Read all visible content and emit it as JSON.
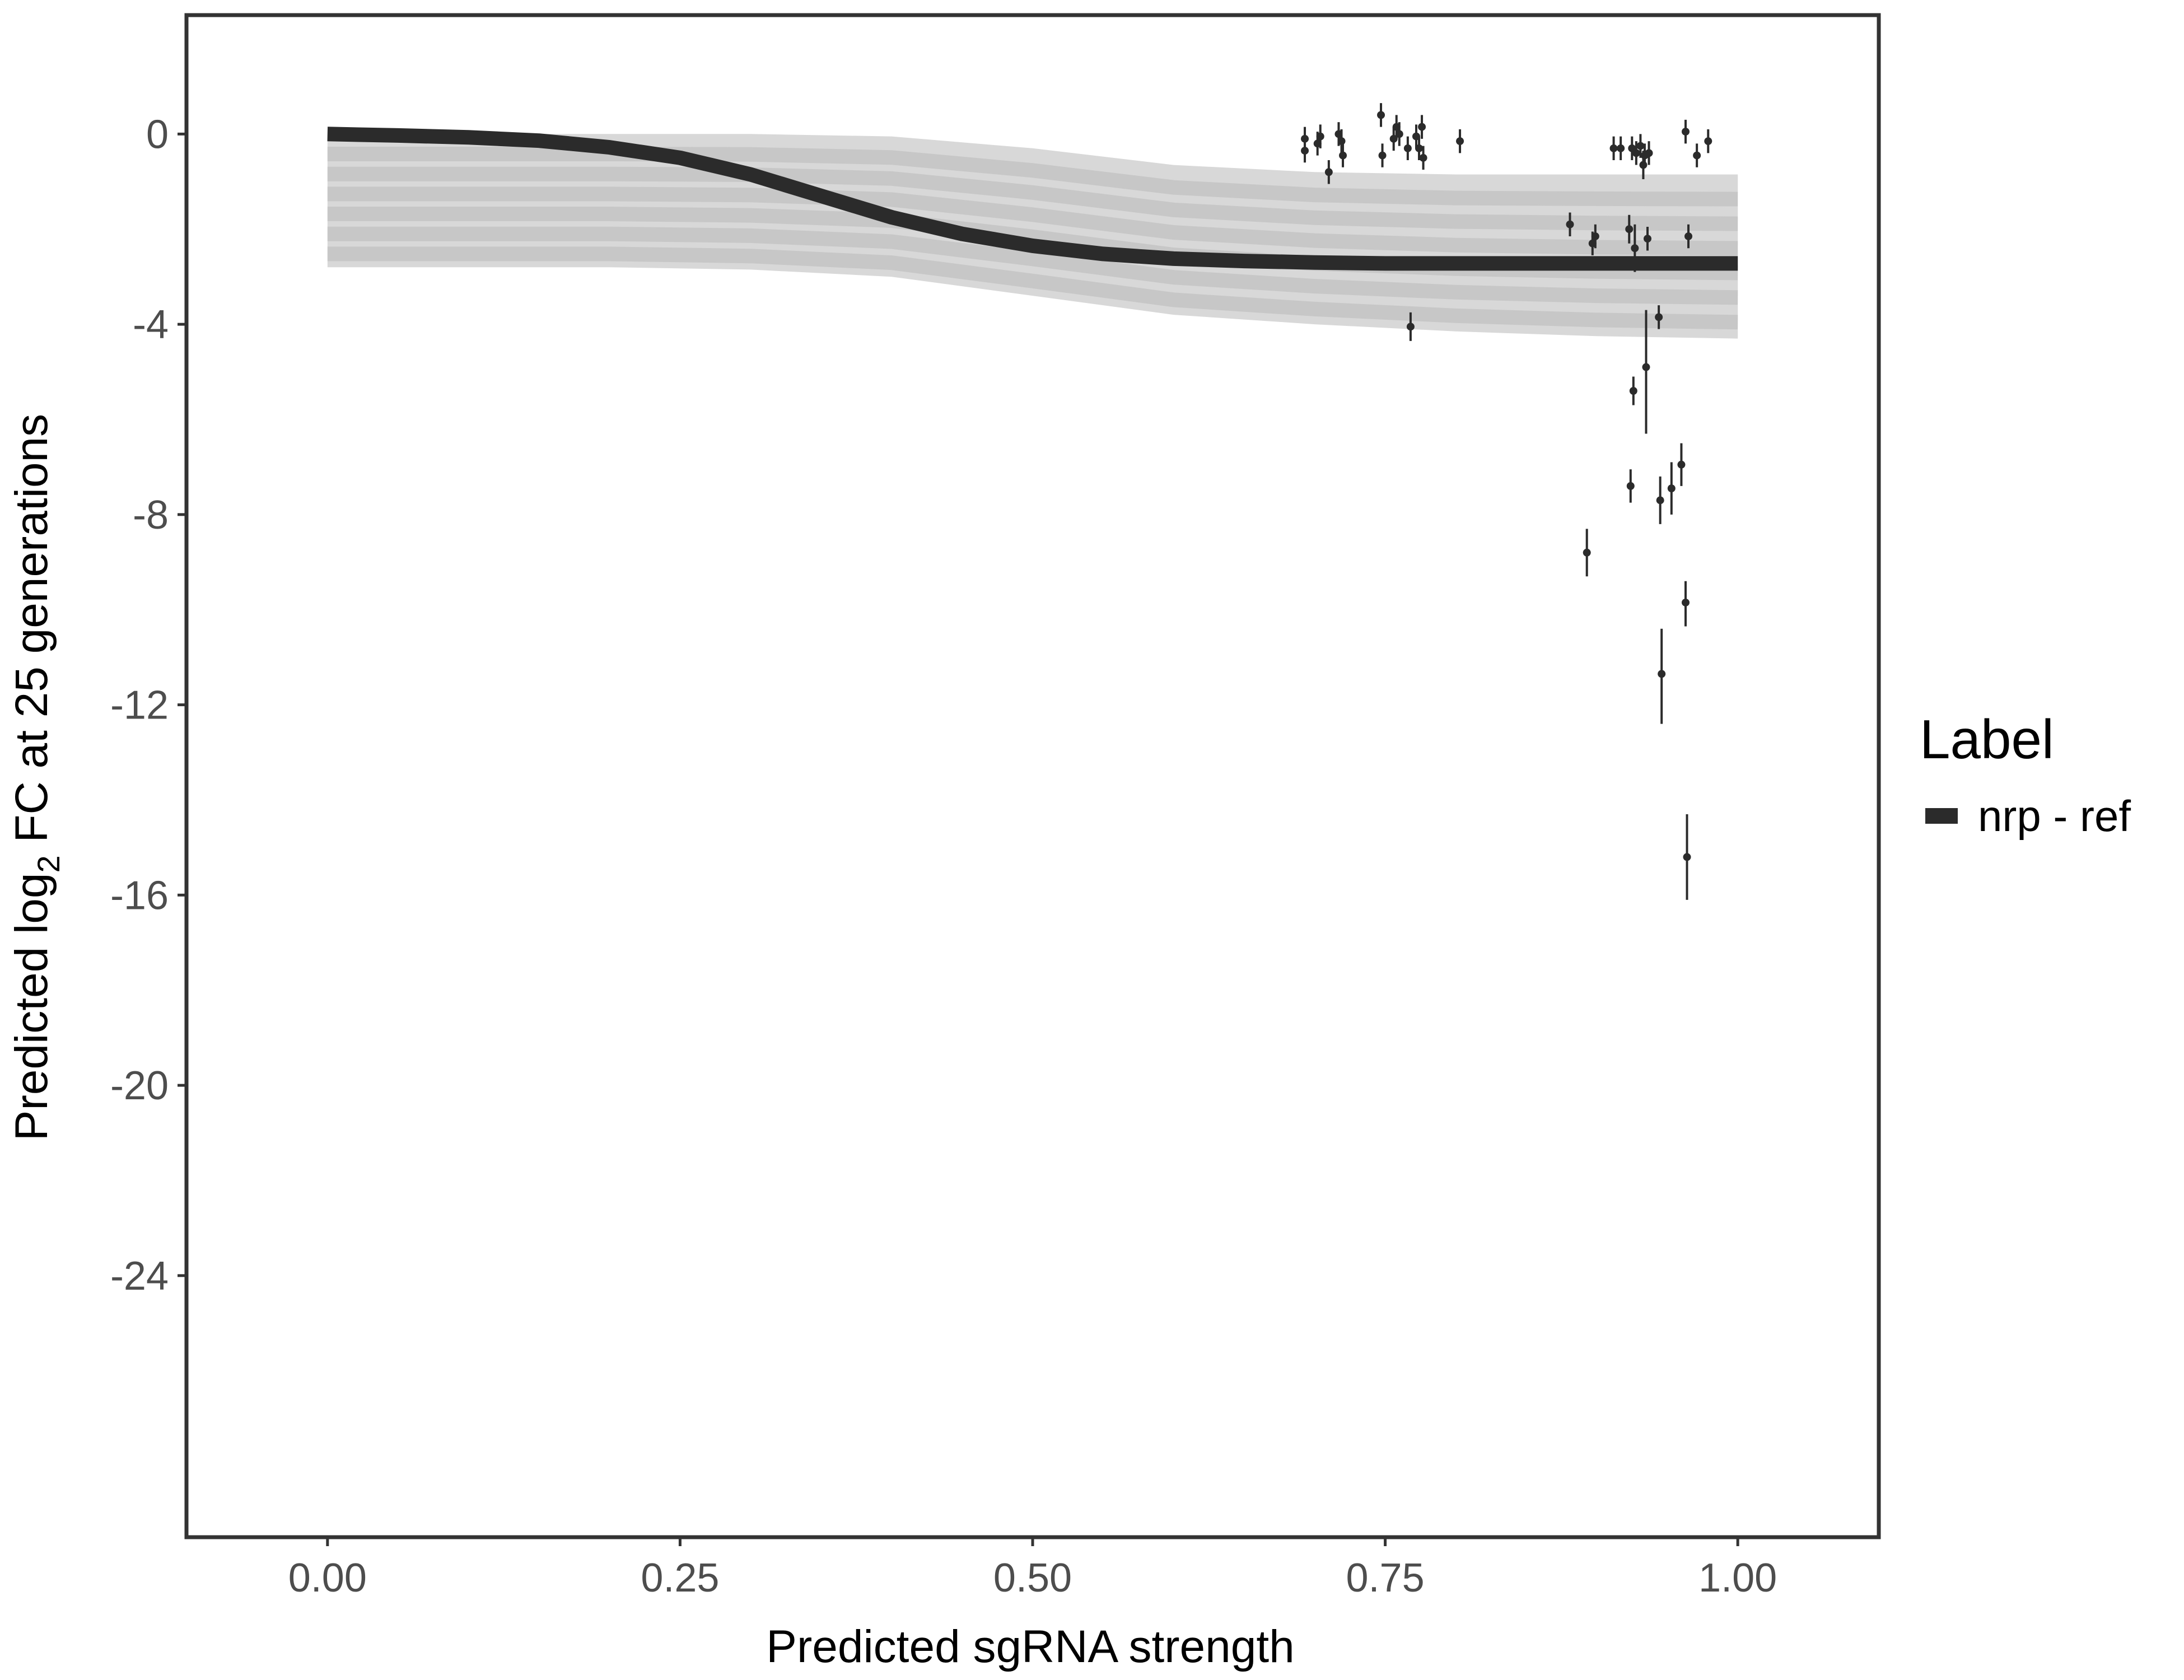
{
  "chart_data": {
    "type": "line",
    "title": "",
    "xlabel": "Predicted sgRNA strength",
    "ylabel_prefix": "Predicted  log",
    "ylabel_subscript": "2",
    "ylabel_suffix": " FC at 25 generations",
    "xlim": [
      -0.1,
      1.1
    ],
    "ylim": [
      -29.5,
      2.5
    ],
    "x_ticks": [
      0,
      0.25,
      0.5,
      0.75,
      1
    ],
    "x_tick_labels": [
      "0.00",
      "0.25",
      "0.50",
      "0.75",
      "1.00"
    ],
    "y_ticks": [
      0,
      -4,
      -8,
      -12,
      -16,
      -20,
      -24
    ],
    "y_tick_labels": [
      "0",
      "-4",
      "-8",
      "-12",
      "-16",
      "-20",
      "-24"
    ],
    "grid": false,
    "legend": {
      "title": "Label",
      "position": "right",
      "entries": [
        {
          "label": "nrp - ref",
          "color": "#2b2b2b"
        }
      ]
    },
    "series": [
      {
        "name": "nrp - ref",
        "kind": "fit-curve",
        "color": "#2b2b2b",
        "x": [
          0,
          0.05,
          0.1,
          0.15,
          0.2,
          0.25,
          0.3,
          0.35,
          0.4,
          0.45,
          0.5,
          0.55,
          0.6,
          0.65,
          0.7,
          0.75,
          0.8,
          0.85,
          0.9,
          0.95,
          1.0
        ],
        "y": [
          0,
          -0.03,
          -0.07,
          -0.14,
          -0.28,
          -0.5,
          -0.85,
          -1.3,
          -1.75,
          -2.1,
          -2.35,
          -2.52,
          -2.62,
          -2.67,
          -2.7,
          -2.72,
          -2.72,
          -2.72,
          -2.72,
          -2.72,
          -2.72
        ]
      },
      {
        "name": "",
        "kind": "posterior-draws",
        "color": "#a8a8a8",
        "band_x": [
          0,
          0.1,
          0.2,
          0.3,
          0.4,
          0.5,
          0.6,
          0.7,
          0.8,
          0.9,
          1.0
        ],
        "band_upper": [
          0,
          0,
          0,
          0,
          -0.05,
          -0.3,
          -0.65,
          -0.8,
          -0.85,
          -0.85,
          -0.85
        ],
        "band_lower": [
          -2.8,
          -2.8,
          -2.8,
          -2.85,
          -3.0,
          -3.4,
          -3.8,
          -4.0,
          -4.15,
          -4.25,
          -4.3
        ]
      },
      {
        "name": "",
        "kind": "points-with-error",
        "color": "#2b2b2b",
        "points": [
          {
            "x": 0.693,
            "y": -0.1,
            "lo": -0.35,
            "hi": 0.15
          },
          {
            "x": 0.693,
            "y": -0.35,
            "lo": -0.6,
            "hi": -0.1
          },
          {
            "x": 0.702,
            "y": -0.2,
            "lo": -0.45,
            "hi": 0.05
          },
          {
            "x": 0.704,
            "y": -0.05,
            "lo": -0.3,
            "hi": 0.2
          },
          {
            "x": 0.71,
            "y": -0.8,
            "lo": -1.05,
            "hi": -0.55
          },
          {
            "x": 0.717,
            "y": 0.0,
            "lo": -0.25,
            "hi": 0.25
          },
          {
            "x": 0.719,
            "y": -0.15,
            "lo": -0.4,
            "hi": 0.1
          },
          {
            "x": 0.72,
            "y": -0.45,
            "lo": -0.7,
            "hi": -0.2
          },
          {
            "x": 0.747,
            "y": 0.4,
            "lo": 0.15,
            "hi": 0.65
          },
          {
            "x": 0.748,
            "y": -0.45,
            "lo": -0.7,
            "hi": -0.2
          },
          {
            "x": 0.756,
            "y": -0.1,
            "lo": -0.35,
            "hi": 0.15
          },
          {
            "x": 0.758,
            "y": 0.15,
            "lo": -0.1,
            "hi": 0.4
          },
          {
            "x": 0.76,
            "y": 0.0,
            "lo": -0.25,
            "hi": 0.25
          },
          {
            "x": 0.766,
            "y": -0.3,
            "lo": -0.55,
            "hi": -0.05
          },
          {
            "x": 0.768,
            "y": -4.05,
            "lo": -4.35,
            "hi": -3.75
          },
          {
            "x": 0.772,
            "y": -0.05,
            "lo": -0.3,
            "hi": 0.2
          },
          {
            "x": 0.774,
            "y": -0.3,
            "lo": -0.55,
            "hi": -0.05
          },
          {
            "x": 0.776,
            "y": 0.15,
            "lo": -0.1,
            "hi": 0.4
          },
          {
            "x": 0.777,
            "y": -0.5,
            "lo": -0.75,
            "hi": -0.25
          },
          {
            "x": 0.803,
            "y": -0.15,
            "lo": -0.4,
            "hi": 0.1
          },
          {
            "x": 0.881,
            "y": -1.9,
            "lo": -2.15,
            "hi": -1.65
          },
          {
            "x": 0.893,
            "y": -8.8,
            "lo": -9.3,
            "hi": -8.3
          },
          {
            "x": 0.897,
            "y": -2.3,
            "lo": -2.55,
            "hi": -2.05
          },
          {
            "x": 0.899,
            "y": -2.15,
            "lo": -2.4,
            "hi": -1.9
          },
          {
            "x": 0.912,
            "y": -0.3,
            "lo": -0.55,
            "hi": -0.05
          },
          {
            "x": 0.917,
            "y": -0.3,
            "lo": -0.55,
            "hi": -0.05
          },
          {
            "x": 0.923,
            "y": -2.0,
            "lo": -2.3,
            "hi": -1.7
          },
          {
            "x": 0.924,
            "y": -7.4,
            "lo": -7.75,
            "hi": -7.05
          },
          {
            "x": 0.925,
            "y": -0.3,
            "lo": -0.55,
            "hi": -0.05
          },
          {
            "x": 0.926,
            "y": -5.4,
            "lo": -5.7,
            "hi": -5.1
          },
          {
            "x": 0.927,
            "y": -2.4,
            "lo": -2.9,
            "hi": -1.9
          },
          {
            "x": 0.928,
            "y": -0.4,
            "lo": -0.65,
            "hi": -0.15
          },
          {
            "x": 0.931,
            "y": -0.25,
            "lo": -0.5,
            "hi": 0.0
          },
          {
            "x": 0.933,
            "y": -0.65,
            "lo": -0.95,
            "hi": -0.35
          },
          {
            "x": 0.934,
            "y": -0.45,
            "lo": -0.7,
            "hi": -0.2
          },
          {
            "x": 0.935,
            "y": -4.9,
            "lo": -6.3,
            "hi": -3.7
          },
          {
            "x": 0.936,
            "y": -2.2,
            "lo": -2.45,
            "hi": -1.95
          },
          {
            "x": 0.937,
            "y": -0.4,
            "lo": -0.65,
            "hi": -0.15
          },
          {
            "x": 0.944,
            "y": -3.85,
            "lo": -4.1,
            "hi": -3.6
          },
          {
            "x": 0.945,
            "y": -7.7,
            "lo": -8.2,
            "hi": -7.2
          },
          {
            "x": 0.946,
            "y": -11.35,
            "lo": -12.4,
            "hi": -10.4
          },
          {
            "x": 0.953,
            "y": -7.45,
            "lo": -8.0,
            "hi": -6.9
          },
          {
            "x": 0.96,
            "y": -6.95,
            "lo": -7.4,
            "hi": -6.5
          },
          {
            "x": 0.963,
            "y": -9.85,
            "lo": -10.35,
            "hi": -9.4
          },
          {
            "x": 0.963,
            "y": 0.05,
            "lo": -0.2,
            "hi": 0.3
          },
          {
            "x": 0.964,
            "y": -15.2,
            "lo": -16.1,
            "hi": -14.3
          },
          {
            "x": 0.965,
            "y": -2.15,
            "lo": -2.4,
            "hi": -1.9
          },
          {
            "x": 0.971,
            "y": -0.45,
            "lo": -0.7,
            "hi": -0.2
          },
          {
            "x": 0.979,
            "y": -0.15,
            "lo": -0.4,
            "hi": 0.1
          }
        ]
      }
    ]
  }
}
